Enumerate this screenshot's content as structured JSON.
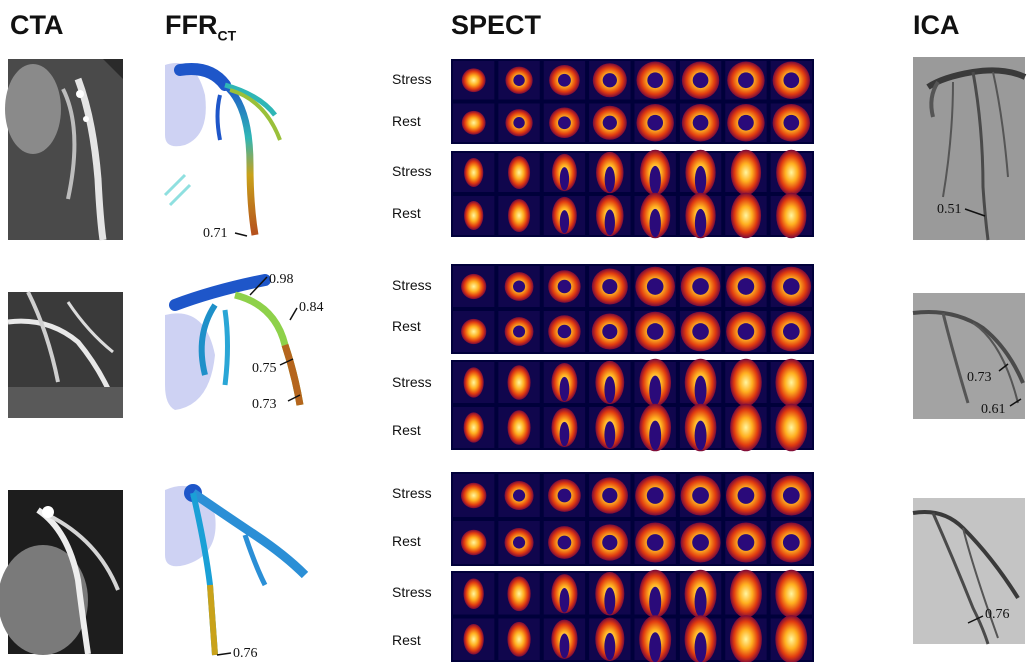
{
  "headers": {
    "cta": "CTA",
    "ffr_main": "FFR",
    "ffr_sub": "CT",
    "spect": "SPECT",
    "ica": "ICA"
  },
  "spect_labels": {
    "stress": "Stress",
    "rest": "Rest"
  },
  "cases": [
    {
      "ffr_values": [
        "0.71"
      ],
      "ica_values": [
        "0.51"
      ]
    },
    {
      "ffr_values": [
        "0.98",
        "0.84",
        "0.75",
        "0.73"
      ],
      "ica_values": [
        "0.73",
        "0.61"
      ]
    },
    {
      "ffr_values": [
        "0.76"
      ],
      "ica_values": [
        "0.76"
      ]
    }
  ],
  "colors": {
    "spect_bg": "#00003a",
    "ffr_high": "#1e56c9",
    "ffr_mid": "#8ed14a",
    "ffr_low": "#b5651d",
    "myocardium_hot": "#fff6a0"
  }
}
